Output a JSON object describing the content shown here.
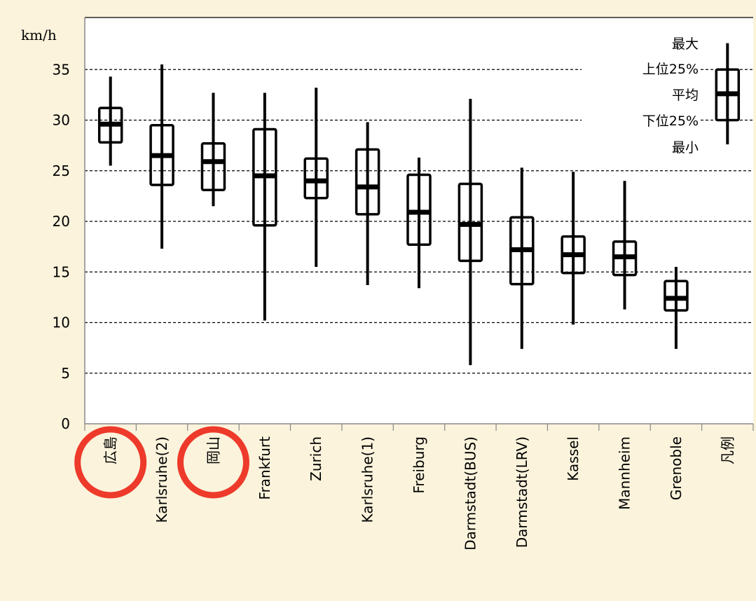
{
  "chart_data": {
    "type": "box",
    "ylabel": "km/h",
    "ylim": [
      0,
      37
    ],
    "yticks": [
      0,
      5,
      10,
      15,
      20,
      25,
      30,
      35
    ],
    "grid": true,
    "categories": [
      "広島",
      "Karlsruhe(2)",
      "岡山",
      "Frankfurt",
      "Zurich",
      "Karlsruhe(1)",
      "Freiburg",
      "Darmstadt(BUS)",
      "Darmstadt(LRV)",
      "Kassel",
      "Mannheim",
      "Grenoble",
      "凡例"
    ],
    "highlighted": [
      "広島",
      "岡山"
    ],
    "highlight_color": "#ee3a2a",
    "series": [
      {
        "category": "広島",
        "min": 25.5,
        "q1": 27.8,
        "mean": 29.6,
        "q3": 31.2,
        "max": 34.3
      },
      {
        "category": "Karlsruhe(2)",
        "min": 17.3,
        "q1": 23.6,
        "mean": 26.5,
        "q3": 29.5,
        "max": 35.5
      },
      {
        "category": "岡山",
        "min": 21.5,
        "q1": 23.1,
        "mean": 25.9,
        "q3": 27.7,
        "max": 32.7
      },
      {
        "category": "Frankfurt",
        "min": 10.2,
        "q1": 19.6,
        "mean": 24.5,
        "q3": 29.1,
        "max": 32.7
      },
      {
        "category": "Zurich",
        "min": 15.5,
        "q1": 22.3,
        "mean": 24.0,
        "q3": 26.2,
        "max": 33.2
      },
      {
        "category": "Karlsruhe(1)",
        "min": 13.7,
        "q1": 20.7,
        "mean": 23.4,
        "q3": 27.1,
        "max": 29.8
      },
      {
        "category": "Freiburg",
        "min": 13.4,
        "q1": 17.7,
        "mean": 20.9,
        "q3": 24.6,
        "max": 26.3
      },
      {
        "category": "Darmstadt(BUS)",
        "min": 5.8,
        "q1": 16.1,
        "mean": 19.7,
        "q3": 23.7,
        "max": 32.1
      },
      {
        "category": "Darmstadt(LRV)",
        "min": 7.4,
        "q1": 13.8,
        "mean": 17.2,
        "q3": 20.4,
        "max": 25.3
      },
      {
        "category": "Kassel",
        "min": 9.8,
        "q1": 14.9,
        "mean": 16.7,
        "q3": 18.5,
        "max": 24.9
      },
      {
        "category": "Mannheim",
        "min": 11.3,
        "q1": 14.7,
        "mean": 16.5,
        "q3": 18.0,
        "max": 24.0
      },
      {
        "category": "Grenoble",
        "min": 7.4,
        "q1": 11.2,
        "mean": 12.4,
        "q3": 14.1,
        "max": 15.5
      },
      {
        "category": "凡例",
        "min": 27.6,
        "q1": 30.0,
        "mean": 32.6,
        "q3": 35.0,
        "max": 37.6
      }
    ],
    "legend": {
      "labels": [
        "最大",
        "上位25%",
        "平均",
        "下位25%",
        "最小"
      ]
    }
  }
}
